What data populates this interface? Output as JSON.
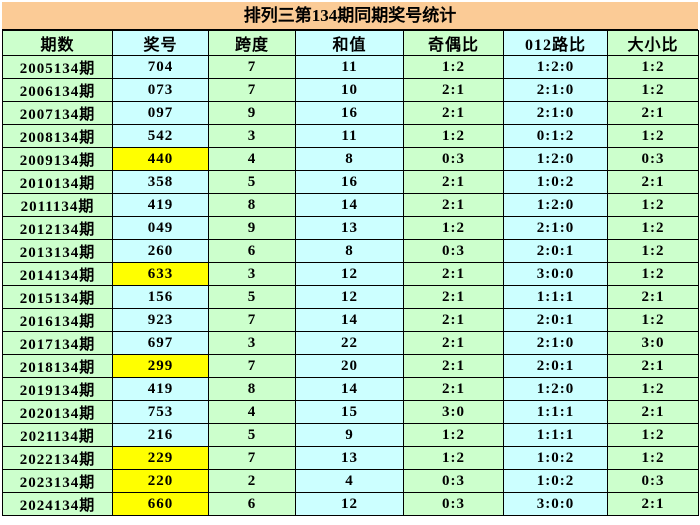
{
  "title": "排列三第134期同期奖号统计",
  "chart_data": {
    "type": "table",
    "title": "排列三第134期同期奖号统计",
    "columns": [
      "期数",
      "奖号",
      "跨度",
      "和值",
      "奇偶比",
      "012路比",
      "大小比"
    ],
    "rows": [
      {
        "period": "2005134期",
        "prize_number": "704",
        "span": "7",
        "sum": "11",
        "odd_even_ratio": "1:2",
        "road_012_ratio": "1:2:0",
        "big_small_ratio": "1:2",
        "prize_highlighted": false
      },
      {
        "period": "2006134期",
        "prize_number": "073",
        "span": "7",
        "sum": "10",
        "odd_even_ratio": "2:1",
        "road_012_ratio": "2:1:0",
        "big_small_ratio": "1:2",
        "prize_highlighted": false
      },
      {
        "period": "2007134期",
        "prize_number": "097",
        "span": "9",
        "sum": "16",
        "odd_even_ratio": "2:1",
        "road_012_ratio": "2:1:0",
        "big_small_ratio": "2:1",
        "prize_highlighted": false
      },
      {
        "period": "2008134期",
        "prize_number": "542",
        "span": "3",
        "sum": "11",
        "odd_even_ratio": "1:2",
        "road_012_ratio": "0:1:2",
        "big_small_ratio": "1:2",
        "prize_highlighted": false
      },
      {
        "period": "2009134期",
        "prize_number": "440",
        "span": "4",
        "sum": "8",
        "odd_even_ratio": "0:3",
        "road_012_ratio": "1:2:0",
        "big_small_ratio": "0:3",
        "prize_highlighted": true
      },
      {
        "period": "2010134期",
        "prize_number": "358",
        "span": "5",
        "sum": "16",
        "odd_even_ratio": "2:1",
        "road_012_ratio": "1:0:2",
        "big_small_ratio": "2:1",
        "prize_highlighted": false
      },
      {
        "period": "2011134期",
        "prize_number": "419",
        "span": "8",
        "sum": "14",
        "odd_even_ratio": "2:1",
        "road_012_ratio": "1:2:0",
        "big_small_ratio": "1:2",
        "prize_highlighted": false
      },
      {
        "period": "2012134期",
        "prize_number": "049",
        "span": "9",
        "sum": "13",
        "odd_even_ratio": "1:2",
        "road_012_ratio": "2:1:0",
        "big_small_ratio": "1:2",
        "prize_highlighted": false
      },
      {
        "period": "2013134期",
        "prize_number": "260",
        "span": "6",
        "sum": "8",
        "odd_even_ratio": "0:3",
        "road_012_ratio": "2:0:1",
        "big_small_ratio": "1:2",
        "prize_highlighted": false
      },
      {
        "period": "2014134期",
        "prize_number": "633",
        "span": "3",
        "sum": "12",
        "odd_even_ratio": "2:1",
        "road_012_ratio": "3:0:0",
        "big_small_ratio": "1:2",
        "prize_highlighted": true
      },
      {
        "period": "2015134期",
        "prize_number": "156",
        "span": "5",
        "sum": "12",
        "odd_even_ratio": "2:1",
        "road_012_ratio": "1:1:1",
        "big_small_ratio": "2:1",
        "prize_highlighted": false
      },
      {
        "period": "2016134期",
        "prize_number": "923",
        "span": "7",
        "sum": "14",
        "odd_even_ratio": "2:1",
        "road_012_ratio": "2:0:1",
        "big_small_ratio": "1:2",
        "prize_highlighted": false
      },
      {
        "period": "2017134期",
        "prize_number": "697",
        "span": "3",
        "sum": "22",
        "odd_even_ratio": "2:1",
        "road_012_ratio": "2:1:0",
        "big_small_ratio": "3:0",
        "prize_highlighted": false
      },
      {
        "period": "2018134期",
        "prize_number": "299",
        "span": "7",
        "sum": "20",
        "odd_even_ratio": "2:1",
        "road_012_ratio": "2:0:1",
        "big_small_ratio": "2:1",
        "prize_highlighted": true
      },
      {
        "period": "2019134期",
        "prize_number": "419",
        "span": "8",
        "sum": "14",
        "odd_even_ratio": "2:1",
        "road_012_ratio": "1:2:0",
        "big_small_ratio": "1:2",
        "prize_highlighted": false
      },
      {
        "period": "2020134期",
        "prize_number": "753",
        "span": "4",
        "sum": "15",
        "odd_even_ratio": "3:0",
        "road_012_ratio": "1:1:1",
        "big_small_ratio": "2:1",
        "prize_highlighted": false
      },
      {
        "period": "2021134期",
        "prize_number": "216",
        "span": "5",
        "sum": "9",
        "odd_even_ratio": "1:2",
        "road_012_ratio": "1:1:1",
        "big_small_ratio": "1:2",
        "prize_highlighted": false
      },
      {
        "period": "2022134期",
        "prize_number": "229",
        "span": "7",
        "sum": "13",
        "odd_even_ratio": "1:2",
        "road_012_ratio": "1:0:2",
        "big_small_ratio": "1:2",
        "prize_highlighted": true
      },
      {
        "period": "2023134期",
        "prize_number": "220",
        "span": "2",
        "sum": "4",
        "odd_even_ratio": "0:3",
        "road_012_ratio": "1:0:2",
        "big_small_ratio": "0:3",
        "prize_highlighted": true
      },
      {
        "period": "2024134期",
        "prize_number": "660",
        "span": "6",
        "sum": "12",
        "odd_even_ratio": "0:3",
        "road_012_ratio": "3:0:0",
        "big_small_ratio": "2:1",
        "prize_highlighted": true
      }
    ]
  },
  "colors": {
    "title_bg": "#FBCB96",
    "green_cell": "#CCFFCC",
    "cyan_cell": "#CCFFFF",
    "highlight_cell": "#FFFF00",
    "border": "#000000",
    "text": "#000000"
  }
}
